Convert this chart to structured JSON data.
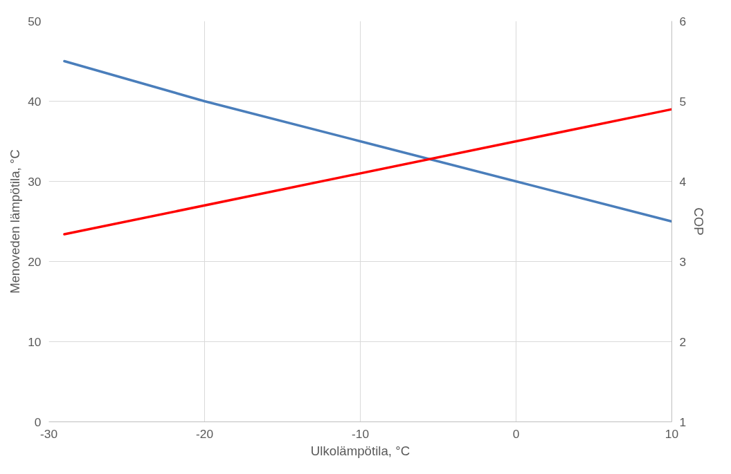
{
  "chart_data": {
    "type": "line",
    "xlabel": "Ulkolämpötila, °C",
    "ylabel": "Menoveden lämpötila, °C",
    "y2label": "COP",
    "series": [
      {
        "color": "#4a7ebb",
        "x": [
          -29,
          -20,
          -10,
          0,
          10
        ],
        "values": [
          45,
          40,
          35,
          30,
          25
        ]
      },
      {
        "color": "#ff0000",
        "axis": "y2",
        "x": [
          -29,
          0,
          10
        ],
        "values": [
          3.34,
          4.5,
          4.9
        ]
      }
    ],
    "xlim": [
      -30,
      10
    ],
    "xticks": [
      -30,
      -20,
      -10,
      0,
      10
    ],
    "ylim": [
      0,
      50
    ],
    "yticks": [
      0,
      10,
      20,
      30,
      40,
      50
    ],
    "y2lim": [
      1,
      6
    ],
    "y2ticks": [
      1,
      2,
      3,
      4,
      5,
      6
    ],
    "grid": true,
    "marker": "none",
    "line_style": "solid"
  }
}
